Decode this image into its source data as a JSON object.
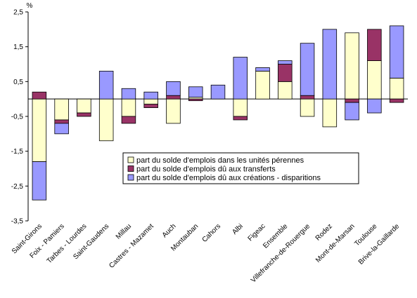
{
  "colors": {
    "perennes": "#FFFFCC",
    "transferts": "#993366",
    "creations": "#9999FF",
    "outline": "#000000"
  },
  "chart_data": {
    "type": "bar",
    "stacked": true,
    "title": "",
    "xlabel": "",
    "ylabel": "%",
    "ylim": [
      -3.5,
      2.5
    ],
    "yticks": [
      2.5,
      1.5,
      0.5,
      -0.5,
      -1.5,
      -2.5,
      -3.5
    ],
    "ytick_labels": [
      "2,5",
      "1,5",
      "0,5",
      "-0,5",
      "-1,5",
      "-2,5",
      "-3,5"
    ],
    "grid": false,
    "legend_position": "center",
    "categories": [
      "Saint-Girons",
      "Foix - Pamiers",
      "Tarbes - Lourdes",
      "Saint-Gaudens",
      "Millau",
      "Castres - Mazamet",
      "Auch",
      "Montauban",
      "Cahors",
      "Albi",
      "Figeac",
      "Ensemble",
      "Villefranche-de-Rouergue",
      "Rodez",
      "Mont-de-Marsan",
      "Toulouse",
      "Brive-la-Gaillarde"
    ],
    "series": [
      {
        "name": "part du solde d'emplois dans les unités pérennes",
        "key": "perennes",
        "values": [
          -1.8,
          -0.6,
          -0.4,
          -1.2,
          -0.5,
          -0.15,
          -0.7,
          0.05,
          0.0,
          -0.5,
          0.8,
          0.5,
          -0.5,
          -0.8,
          1.9,
          1.1,
          0.6
        ]
      },
      {
        "name": "part du solde d'emplois dû aux transferts",
        "key": "transferts",
        "values": [
          0.2,
          -0.1,
          -0.1,
          0.0,
          -0.2,
          -0.1,
          0.1,
          -0.05,
          0.0,
          -0.1,
          0.0,
          0.5,
          0.1,
          0.0,
          -0.1,
          0.9,
          -0.1
        ]
      },
      {
        "name": "part du solde d'emplois dû aux créations - disparitions",
        "key": "creations",
        "values": [
          -1.1,
          -0.3,
          0.0,
          0.8,
          0.3,
          0.2,
          0.4,
          0.3,
          0.4,
          1.2,
          0.1,
          0.1,
          1.5,
          2.0,
          -0.5,
          -0.4,
          1.5
        ]
      }
    ]
  }
}
